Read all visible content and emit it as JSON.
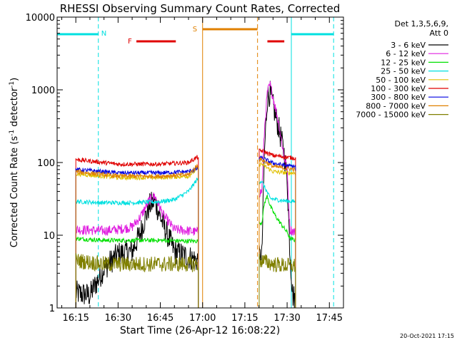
{
  "chart_data": {
    "type": "line",
    "title": "RHESSI Observing Summary Count Rates, Corrected",
    "xlabel": "Start Time (26-Apr-12 16:08:22)",
    "ylabel_main": "Corrected Count Rate (s",
    "ylabel_mid": " detector",
    "ylabel_end": ")",
    "ylabel_sup": "-1",
    "y_scale": "log",
    "ylim": [
      1,
      10000
    ],
    "y_ticks": [
      {
        "value": 1,
        "label": "1"
      },
      {
        "value": 10,
        "label": "10"
      },
      {
        "value": 100,
        "label": "100"
      },
      {
        "value": 1000,
        "label": "1000"
      },
      {
        "value": 10000,
        "label": "10000"
      }
    ],
    "xlim": [
      "16:08:22",
      "17:50:00"
    ],
    "x_ticks": [
      {
        "time": "16:15",
        "label": "16:15"
      },
      {
        "time": "16:30",
        "label": "16:30"
      },
      {
        "time": "16:45",
        "label": "16:45"
      },
      {
        "time": "17:00",
        "label": "17:00"
      },
      {
        "time": "17:15",
        "label": "17:15"
      },
      {
        "time": "17:30",
        "label": "17:30"
      },
      {
        "time": "17:45",
        "label": "17:45"
      }
    ],
    "legend": {
      "placement": "right",
      "header1": "Det 1,3,5,6,9,",
      "header2": "Att 0",
      "entries": [
        {
          "label": "3 - 6 keV",
          "color": "#000000"
        },
        {
          "label": "6 - 12 keV",
          "color": "#e020e0"
        },
        {
          "label": "12 - 25 keV",
          "color": "#00e000"
        },
        {
          "label": "25 - 50 keV",
          "color": "#00e0e0"
        },
        {
          "label": "50 - 100 keV",
          "color": "#e0c000"
        },
        {
          "label": "100 - 300 keV",
          "color": "#e00000"
        },
        {
          "label": "300 - 800 keV",
          "color": "#0000e0"
        },
        {
          "label": "800 - 7000 keV",
          "color": "#e08000"
        },
        {
          "label": "7000 - 15000 keV",
          "color": "#808000"
        }
      ]
    },
    "annotations": [
      {
        "label": "N",
        "color": "#00e0e0"
      },
      {
        "label": "F",
        "color": "#e00000"
      },
      {
        "label": "S",
        "color": "#e08000"
      }
    ],
    "footer_date": "20-Oct-2021 17:15",
    "night_intervals": [
      [
        "16:08:22",
        "16:23:00"
      ],
      [
        "17:31:30",
        "17:46:30"
      ]
    ],
    "saa_interval": [
      "17:00:00",
      "17:19:30"
    ],
    "flare_intervals": [
      [
        "16:36:30",
        "16:50:30"
      ],
      [
        "17:23:00",
        "17:29:00"
      ]
    ],
    "data_gap": [
      "16:58:30",
      "17:20:00"
    ],
    "series": [
      {
        "name": "3 - 6 keV",
        "color": "#000000",
        "points": [
          [
            "16:15",
            1.6
          ],
          [
            "16:20",
            1.5
          ],
          [
            "16:25",
            3.5
          ],
          [
            "16:30",
            5.5
          ],
          [
            "16:35",
            6
          ],
          [
            "16:38",
            11
          ],
          [
            "16:41",
            25
          ],
          [
            "16:43",
            30
          ],
          [
            "16:46",
            14
          ],
          [
            "16:50",
            6
          ],
          [
            "16:55",
            5
          ],
          [
            "16:58",
            4.5
          ],
          [
            "17:21",
            5
          ],
          [
            "17:22",
            150
          ],
          [
            "17:23",
            800
          ],
          [
            "17:24",
            900
          ],
          [
            "17:25",
            600
          ],
          [
            "17:27",
            300
          ],
          [
            "17:28",
            200
          ],
          [
            "17:29",
            130
          ],
          [
            "17:30",
            60
          ],
          [
            "17:31",
            6
          ],
          [
            "17:32",
            1.5
          ],
          [
            "17:33",
            1.3
          ]
        ]
      },
      {
        "name": "6 - 12 keV",
        "color": "#e020e0",
        "points": [
          [
            "16:15",
            12
          ],
          [
            "16:25",
            11.5
          ],
          [
            "16:30",
            12
          ],
          [
            "16:35",
            13
          ],
          [
            "16:38",
            18
          ],
          [
            "16:41",
            30
          ],
          [
            "16:43",
            35
          ],
          [
            "16:46",
            19
          ],
          [
            "16:50",
            12
          ],
          [
            "16:55",
            11.5
          ],
          [
            "16:58",
            11
          ],
          [
            "17:21",
            40
          ],
          [
            "17:22",
            300
          ],
          [
            "17:23",
            950
          ],
          [
            "17:24",
            1150
          ],
          [
            "17:25",
            800
          ],
          [
            "17:27",
            350
          ],
          [
            "17:28",
            200
          ],
          [
            "17:29",
            120
          ],
          [
            "17:30",
            80
          ],
          [
            "17:31",
            12
          ],
          [
            "17:33",
            11
          ]
        ]
      },
      {
        "name": "12 - 25 keV",
        "color": "#00e000",
        "points": [
          [
            "16:15",
            9
          ],
          [
            "16:25",
            8.5
          ],
          [
            "16:35",
            8.5
          ],
          [
            "16:45",
            8.5
          ],
          [
            "16:55",
            8.3
          ],
          [
            "16:58",
            8.3
          ],
          [
            "17:21",
            15
          ],
          [
            "17:22",
            28
          ],
          [
            "17:23",
            35
          ],
          [
            "17:24",
            25
          ],
          [
            "17:26",
            18
          ],
          [
            "17:28",
            14
          ],
          [
            "17:30",
            11
          ],
          [
            "17:31",
            9
          ],
          [
            "17:33",
            8.5
          ]
        ]
      },
      {
        "name": "25 - 50 keV",
        "color": "#00e0e0",
        "points": [
          [
            "16:15",
            29
          ],
          [
            "16:25",
            28
          ],
          [
            "16:35",
            28
          ],
          [
            "16:45",
            29
          ],
          [
            "16:50",
            31
          ],
          [
            "16:55",
            40
          ],
          [
            "16:58",
            58
          ],
          [
            "17:21",
            55
          ],
          [
            "17:24",
            32
          ],
          [
            "17:28",
            30
          ],
          [
            "17:33",
            29
          ]
        ]
      },
      {
        "name": "50 - 100 keV",
        "color": "#e0c000",
        "points": [
          [
            "16:15",
            70
          ],
          [
            "16:30",
            62
          ],
          [
            "16:45",
            62
          ],
          [
            "16:55",
            65
          ],
          [
            "16:58",
            82
          ],
          [
            "17:21",
            95
          ],
          [
            "17:25",
            75
          ],
          [
            "17:30",
            72
          ],
          [
            "17:33",
            72
          ]
        ]
      },
      {
        "name": "100 - 300 keV",
        "color": "#e00000",
        "points": [
          [
            "16:15",
            110
          ],
          [
            "16:30",
            95
          ],
          [
            "16:45",
            95
          ],
          [
            "16:55",
            100
          ],
          [
            "16:58",
            118
          ],
          [
            "17:21",
            145
          ],
          [
            "17:25",
            125
          ],
          [
            "17:30",
            118
          ],
          [
            "17:33",
            115
          ]
        ]
      },
      {
        "name": "300 - 800 keV",
        "color": "#0000e0",
        "points": [
          [
            "16:15",
            80
          ],
          [
            "16:30",
            72
          ],
          [
            "16:45",
            72
          ],
          [
            "16:55",
            75
          ],
          [
            "16:58",
            82
          ],
          [
            "17:21",
            115
          ],
          [
            "17:25",
            98
          ],
          [
            "17:30",
            90
          ],
          [
            "17:33",
            88
          ]
        ]
      },
      {
        "name": "800 - 7000 keV",
        "color": "#e08000",
        "points": [
          [
            "16:15",
            75
          ],
          [
            "16:30",
            65
          ],
          [
            "16:45",
            65
          ],
          [
            "16:55",
            68
          ],
          [
            "16:58",
            90
          ],
          [
            "17:21",
            110
          ],
          [
            "17:25",
            88
          ],
          [
            "17:30",
            83
          ],
          [
            "17:33",
            80
          ]
        ]
      },
      {
        "name": "7000 - 15000 keV",
        "color": "#808000",
        "points": [
          [
            "16:15",
            4.5
          ],
          [
            "16:25",
            4
          ],
          [
            "16:35",
            4
          ],
          [
            "16:45",
            4
          ],
          [
            "16:55",
            4
          ],
          [
            "16:58",
            4
          ],
          [
            "17:21",
            4.5
          ],
          [
            "17:25",
            4
          ],
          [
            "17:30",
            3.8
          ],
          [
            "17:33",
            3.8
          ]
        ]
      }
    ]
  }
}
